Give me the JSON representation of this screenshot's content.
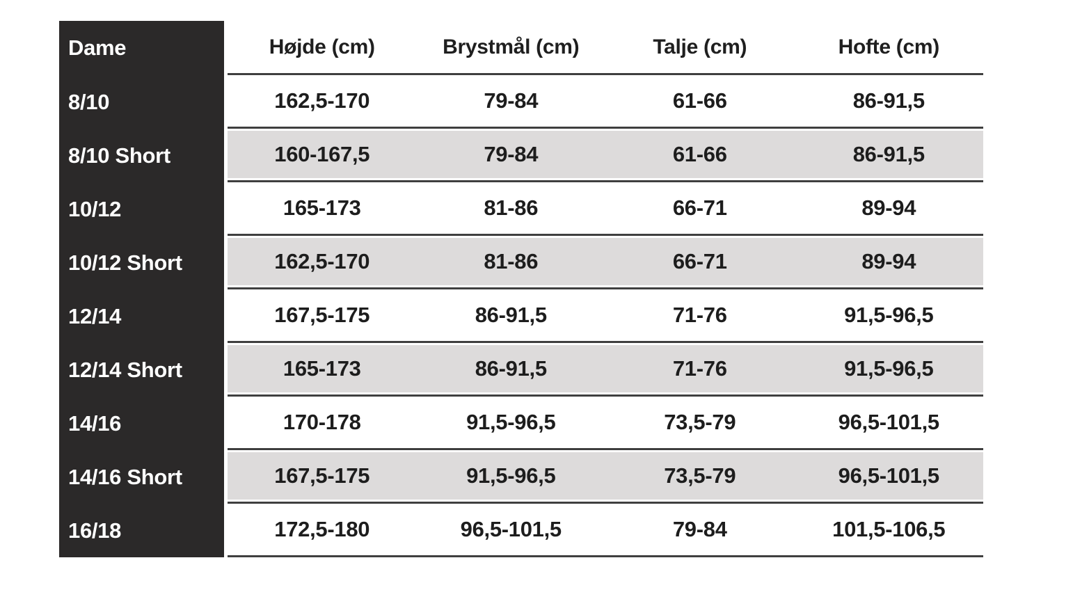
{
  "chart_data": {
    "type": "table",
    "corner_label": "Dame",
    "columns": [
      "Højde (cm)",
      "Brystmål (cm)",
      "Talje (cm)",
      "Hofte (cm)"
    ],
    "rows": [
      {
        "label": "8/10",
        "values": [
          "162,5-170",
          "79-84",
          "61-66",
          "86-91,5"
        ]
      },
      {
        "label": "8/10 Short",
        "values": [
          "160-167,5",
          "79-84",
          "61-66",
          "86-91,5"
        ]
      },
      {
        "label": "10/12",
        "values": [
          "165-173",
          "81-86",
          "66-71",
          "89-94"
        ]
      },
      {
        "label": "10/12 Short",
        "values": [
          "162,5-170",
          "81-86",
          "66-71",
          "89-94"
        ]
      },
      {
        "label": "12/14",
        "values": [
          "167,5-175",
          "86-91,5",
          "71-76",
          "91,5-96,5"
        ]
      },
      {
        "label": "12/14 Short",
        "values": [
          "165-173",
          "86-91,5",
          "71-76",
          "91,5-96,5"
        ]
      },
      {
        "label": "14/16",
        "values": [
          "170-178",
          "91,5-96,5",
          "73,5-79",
          "96,5-101,5"
        ]
      },
      {
        "label": "14/16 Short",
        "values": [
          "167,5-175",
          "91,5-96,5",
          "73,5-79",
          "96,5-101,5"
        ]
      },
      {
        "label": "16/18",
        "values": [
          "172,5-180",
          "96,5-101,5",
          "79-84",
          "101,5-106,5"
        ]
      }
    ],
    "layout": {
      "alternating_row_shading": true,
      "label_column_position": "left"
    }
  },
  "colors": {
    "label_column_bg": "#2b2929",
    "label_text": "#ffffff",
    "alt_row_bg": "#dddbdb",
    "separator_line": "#3f3f3f",
    "value_text": "#1d1d1d",
    "page_bg": "#ffffff"
  }
}
